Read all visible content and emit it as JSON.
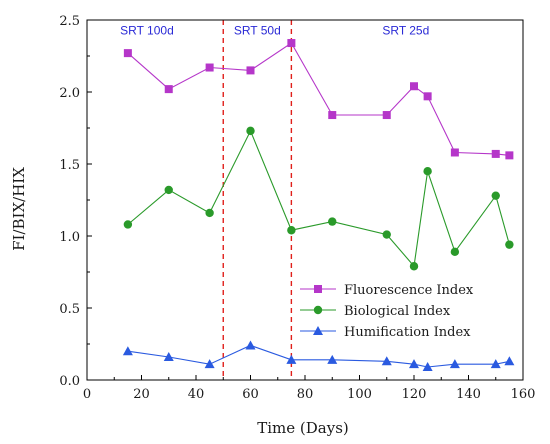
{
  "chart_data": {
    "type": "line",
    "xlabel": "Time (Days)",
    "ylabel": "FI/BIX/HIX",
    "xlim": [
      0,
      160
    ],
    "ylim": [
      0,
      2.5
    ],
    "x_ticks": [
      "0",
      "20",
      "40",
      "60",
      "80",
      "100",
      "120",
      "140",
      "160"
    ],
    "y_ticks": [
      "0.0",
      "0.5",
      "1.0",
      "1.5",
      "2.0",
      "2.5"
    ],
    "grid": false,
    "legend_position": "bottom-right",
    "vertical_lines": [
      50,
      75
    ],
    "vertical_line_color": "#e0201b",
    "region_labels": [
      {
        "text": "SRT 100d",
        "x": 22,
        "y": 2.4
      },
      {
        "text": "SRT 50d",
        "x": 62.5,
        "y": 2.4
      },
      {
        "text": "SRT 25d",
        "x": 117,
        "y": 2.4
      }
    ],
    "region_label_color": "#2a2ad6",
    "series": [
      {
        "name": "Fluorescence Index",
        "marker": "square",
        "color": "#b536c9",
        "x": [
          15,
          30,
          45,
          60,
          75,
          90,
          110,
          120,
          125,
          135,
          150,
          155
        ],
        "y": [
          2.27,
          2.02,
          2.17,
          2.15,
          2.34,
          1.84,
          1.84,
          2.04,
          1.97,
          1.58,
          1.57,
          1.56
        ]
      },
      {
        "name": "Biological Index",
        "marker": "circle",
        "color": "#2a9a2a",
        "x": [
          15,
          30,
          45,
          60,
          75,
          90,
          110,
          120,
          125,
          135,
          150,
          155
        ],
        "y": [
          1.08,
          1.32,
          1.16,
          1.73,
          1.04,
          1.1,
          1.01,
          0.79,
          1.45,
          0.89,
          1.28,
          0.94
        ]
      },
      {
        "name": "Humification Index",
        "marker": "triangle",
        "color": "#2a5ae0",
        "x": [
          15,
          30,
          45,
          60,
          75,
          90,
          110,
          120,
          125,
          135,
          150,
          155
        ],
        "y": [
          0.2,
          0.16,
          0.11,
          0.24,
          0.14,
          0.14,
          0.13,
          0.11,
          0.09,
          0.11,
          0.11,
          0.13
        ]
      }
    ]
  }
}
